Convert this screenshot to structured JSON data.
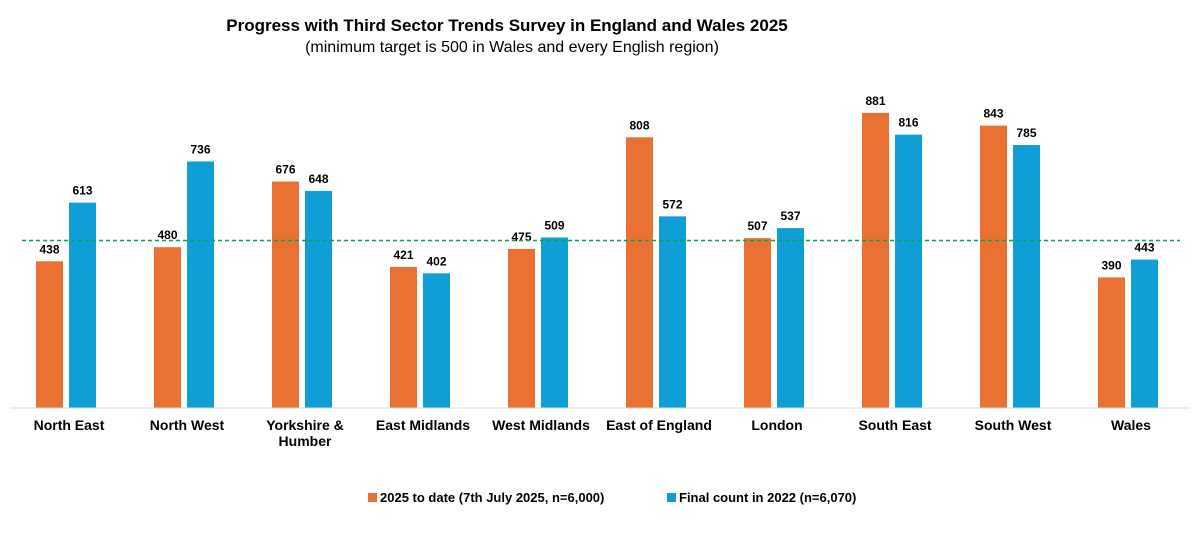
{
  "chart_data": {
    "type": "bar",
    "title": "Progress with Third Sector Trends Survey in England and Wales 2025",
    "subtitle": "(minimum target is 500 in Wales and every English region)",
    "categories": [
      [
        "North East"
      ],
      [
        "North West"
      ],
      [
        "Yorkshire  &",
        "Humber"
      ],
      [
        "East Midlands"
      ],
      [
        "West Midlands"
      ],
      [
        "East of England"
      ],
      [
        "London"
      ],
      [
        "South East"
      ],
      [
        "South West"
      ],
      [
        "Wales"
      ]
    ],
    "series": [
      {
        "name": "2025 to date (7th July 2025, n=6,000)",
        "color": "#E97132",
        "values": [
          438,
          480,
          676,
          421,
          475,
          808,
          507,
          881,
          843,
          390
        ]
      },
      {
        "name": "Final count in 2022 (n=6,070)",
        "color": "#0F9ED5",
        "values": [
          613,
          736,
          648,
          402,
          509,
          572,
          537,
          816,
          785,
          443
        ]
      }
    ],
    "target": {
      "value": 500,
      "color": "#00A651"
    },
    "ylim": [
      0,
      1000
    ],
    "xlabel": "",
    "ylabel": "",
    "grid": false,
    "legend": "bottom-center"
  }
}
